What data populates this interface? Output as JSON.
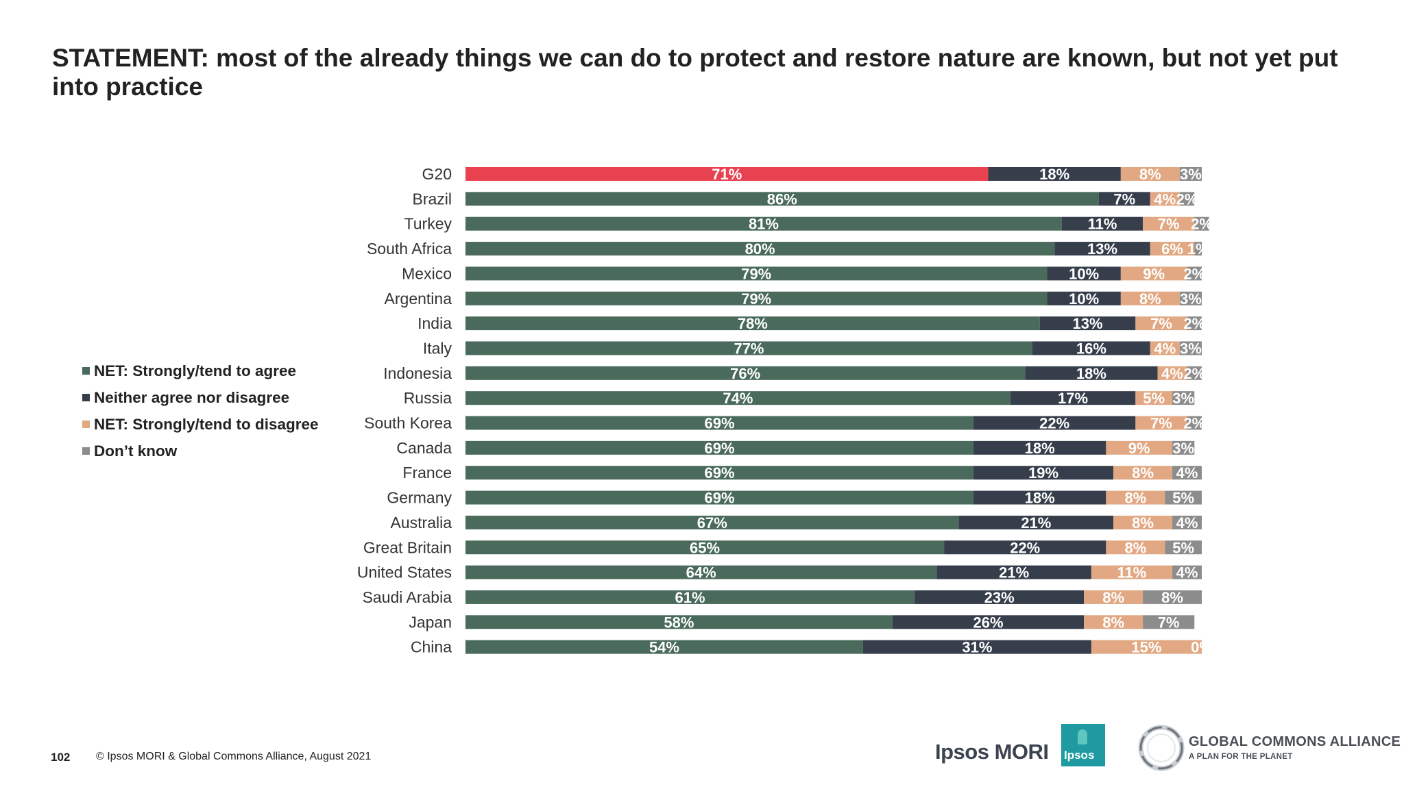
{
  "page": {
    "title": "STATEMENT: most of the already things we can do to protect and restore nature are known, but not yet put into practice",
    "page_number": "102",
    "copyright": "© Ipsos MORI & Global Commons Alliance, August 2021",
    "logos": {
      "ipsos_mori": "Ipsos MORI",
      "ipsos_badge": "Ipsos",
      "gca_name": "GLOBAL COMMONS ALLIANCE",
      "gca_tagline": "A PLAN FOR THE PLANET"
    }
  },
  "legend": [
    {
      "label": "NET: Strongly/tend to agree",
      "color": "#4a6b5c"
    },
    {
      "label": "Neither agree nor disagree",
      "color": "#363e4b"
    },
    {
      "label": "NET: Strongly/tend to disagree",
      "color": "#e1a883"
    },
    {
      "label": "Don’t know",
      "color": "#8c8c8c"
    }
  ],
  "chart_data": {
    "type": "bar",
    "orientation": "horizontal",
    "stacked": true,
    "categories": [
      "G20",
      "Brazil",
      "Turkey",
      "South Africa",
      "Mexico",
      "Argentina",
      "India",
      "Italy",
      "Indonesia",
      "Russia",
      "South Korea",
      "Canada",
      "France",
      "Germany",
      "Australia",
      "Great Britain",
      "United States",
      "Saudi Arabia",
      "Japan",
      "China"
    ],
    "highlight": {
      "category": "G20",
      "color": "#e8414f"
    },
    "series": [
      {
        "name": "NET: Strongly/tend to agree",
        "color": "#4a6b5c",
        "values": [
          71,
          86,
          81,
          80,
          79,
          79,
          78,
          77,
          76,
          74,
          69,
          69,
          69,
          69,
          67,
          65,
          64,
          61,
          58,
          54
        ]
      },
      {
        "name": "Neither agree nor disagree",
        "color": "#363e4b",
        "values": [
          18,
          7,
          11,
          13,
          10,
          10,
          13,
          16,
          18,
          17,
          22,
          18,
          19,
          18,
          21,
          22,
          21,
          23,
          26,
          31
        ]
      },
      {
        "name": "NET: Strongly/tend to disagree",
        "color": "#e1a883",
        "values": [
          8,
          4,
          7,
          6,
          9,
          8,
          7,
          4,
          4,
          5,
          7,
          9,
          8,
          8,
          8,
          8,
          11,
          8,
          8,
          15
        ]
      },
      {
        "name": "Don’t know",
        "color": "#8c8c8c",
        "values": [
          3,
          2,
          2,
          1,
          2,
          3,
          2,
          3,
          2,
          3,
          2,
          3,
          4,
          5,
          4,
          5,
          4,
          8,
          7,
          0
        ]
      }
    ],
    "value_suffix": "%",
    "xlim": [
      0,
      100
    ],
    "legend_position": "left"
  }
}
